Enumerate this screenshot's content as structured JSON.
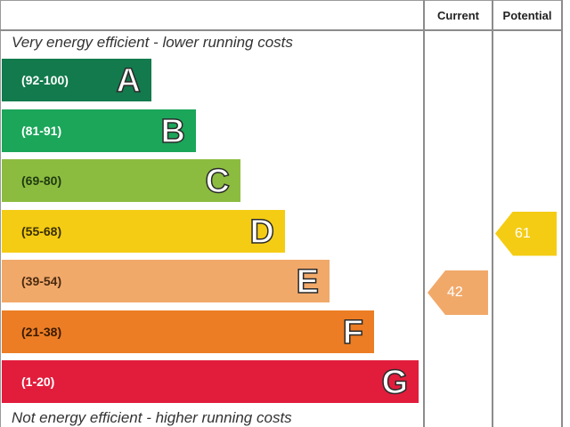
{
  "header": {
    "current_label": "Current",
    "potential_label": "Potential"
  },
  "captions": {
    "top": "Very energy efficient - lower running costs",
    "bottom": "Not energy efficient - higher running costs"
  },
  "chart_data": {
    "type": "bar",
    "bands": [
      {
        "range": "(92-100)",
        "letter": "A",
        "color": "#127a4c",
        "range_color": "#ffffff"
      },
      {
        "range": "(81-91)",
        "letter": "B",
        "color": "#1ba65a",
        "range_color": "#ffffff"
      },
      {
        "range": "(69-80)",
        "letter": "C",
        "color": "#8cbc3f",
        "range_color": "#1f3a12"
      },
      {
        "range": "(55-68)",
        "letter": "D",
        "color": "#f4cc14",
        "range_color": "#3a3000"
      },
      {
        "range": "(39-54)",
        "letter": "E",
        "color": "#f1a96a",
        "range_color": "#4a2a10"
      },
      {
        "range": "(21-38)",
        "letter": "F",
        "color": "#ec7d24",
        "range_color": "#3a1a00"
      },
      {
        "range": "(1-20)",
        "letter": "G",
        "color": "#e21d3c",
        "range_color": "#ffffff"
      }
    ],
    "current": {
      "value": 42,
      "label": "42",
      "band": "E",
      "color": "#f1a96a"
    },
    "potential": {
      "value": 61,
      "label": "61",
      "band": "D",
      "color": "#f4cc14"
    }
  }
}
